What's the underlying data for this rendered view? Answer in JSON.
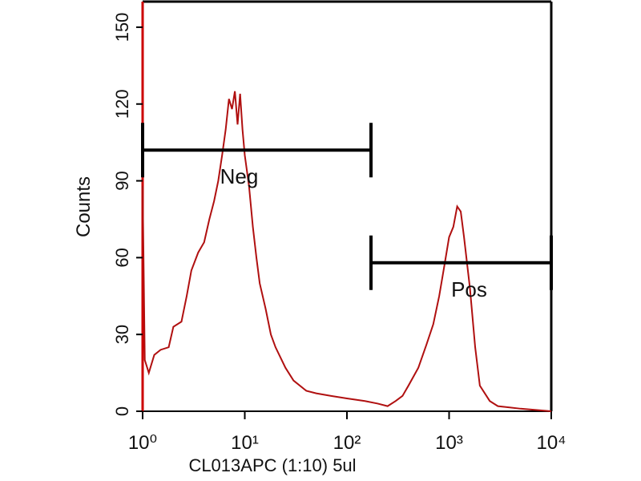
{
  "chart_data": {
    "type": "line",
    "x_label": "CL013APC (1:10)  5ul",
    "y_label": "Counts",
    "xscale": "log",
    "xlim": [
      1,
      10000
    ],
    "ylim": [
      0,
      160
    ],
    "xticks": [
      {
        "value": 1,
        "label": "10⁰"
      },
      {
        "value": 10,
        "label": "10¹"
      },
      {
        "value": 100,
        "label": "10²"
      },
      {
        "value": 1000,
        "label": "10³"
      },
      {
        "value": 10000,
        "label": "10⁴"
      }
    ],
    "yticks": [
      0,
      30,
      60,
      90,
      120,
      150
    ],
    "series": [
      {
        "color": "#b01010",
        "x": [
          1,
          1.05,
          1.15,
          1.3,
          1.5,
          1.8,
          2,
          2.4,
          2.7,
          3,
          3.5,
          4,
          4.5,
          5,
          5.5,
          6,
          6.5,
          7,
          7.5,
          8,
          8.5,
          9,
          9.5,
          10,
          11,
          12,
          13,
          14,
          16,
          18,
          20,
          25,
          30,
          40,
          50,
          70,
          100,
          150,
          200,
          250,
          300,
          350,
          400,
          500,
          600,
          700,
          800,
          900,
          1000,
          1100,
          1200,
          1300,
          1400,
          1600,
          1800,
          2000,
          2500,
          3000,
          5000,
          10000
        ],
        "values": [
          88,
          20,
          15,
          22,
          24,
          25,
          33,
          35,
          45,
          55,
          62,
          66,
          75,
          82,
          90,
          100,
          110,
          122,
          118,
          125,
          112,
          124,
          110,
          100,
          88,
          72,
          60,
          50,
          40,
          30,
          25,
          17,
          12,
          8,
          7,
          6,
          5,
          4,
          3,
          2,
          4,
          6,
          10,
          17,
          26,
          34,
          45,
          57,
          68,
          72,
          80,
          78,
          68,
          48,
          25,
          10,
          4,
          2,
          1,
          0
        ]
      }
    ],
    "gates": [
      {
        "label": "Neg",
        "range": [
          1,
          172
        ],
        "y": 102
      },
      {
        "label": "Pos",
        "range": [
          172,
          10000
        ],
        "y": 58
      }
    ]
  }
}
